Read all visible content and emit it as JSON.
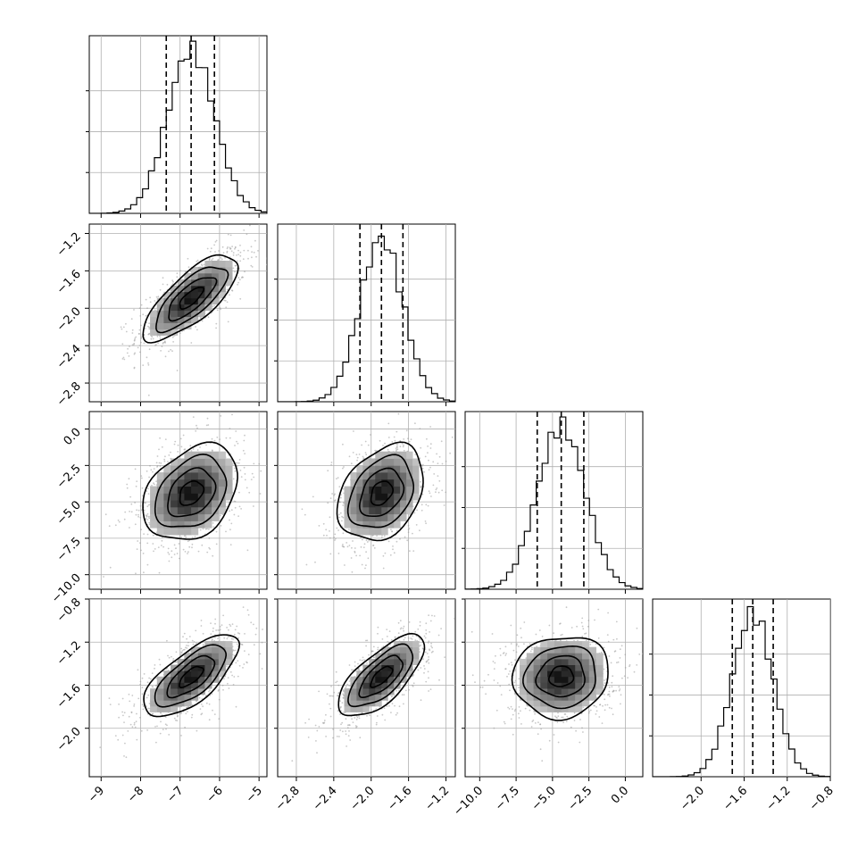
{
  "chart_data": {
    "type": "corner",
    "title": "",
    "quantiles": [
      0.16,
      0.5,
      0.84
    ],
    "grid": true,
    "contour_levels": [
      0.118,
      0.393,
      0.675,
      0.864
    ],
    "parameters": [
      {
        "index": 0,
        "label": "",
        "mean": -6.72,
        "sd": 0.6,
        "range": [
          -9.3,
          -4.8
        ],
        "ticks": [
          -9,
          -8,
          -7,
          -6,
          -5
        ],
        "tick_labels": [
          "−9",
          "−8",
          "−7",
          "−6",
          "−5"
        ],
        "quantile_values": [
          -7.35,
          -6.72,
          -6.13
        ]
      },
      {
        "index": 1,
        "label": "",
        "mean": -1.89,
        "sd": 0.23,
        "range": [
          -3.0,
          -1.1
        ],
        "ticks": [
          -2.8,
          -2.4,
          -2.0,
          -1.6,
          -1.2
        ],
        "tick_labels": [
          "−2.8",
          "−2.4",
          "−2.0",
          "−1.6",
          "−1.2"
        ],
        "quantile_values": [
          -2.12,
          -1.89,
          -1.66
        ]
      },
      {
        "index": 2,
        "label": "",
        "mean": -4.4,
        "sd": 1.65,
        "range": [
          -11.0,
          1.2
        ],
        "ticks": [
          -10.0,
          -7.5,
          -5.0,
          -2.5,
          0.0
        ],
        "tick_labels": [
          "−10.0",
          "−7.5",
          "−5.0",
          "−2.5",
          "0.0"
        ],
        "quantile_values": [
          -6.05,
          -4.4,
          -2.85
        ]
      },
      {
        "index": 3,
        "label": "",
        "mean": -1.52,
        "sd": 0.19,
        "range": [
          -2.45,
          -0.8
        ],
        "ticks": [
          -2.0,
          -1.6,
          -1.2,
          -0.8
        ],
        "tick_labels": [
          "−2.0",
          "−1.6",
          "−1.2",
          "−0.8"
        ],
        "quantile_values": [
          -1.71,
          -1.52,
          -1.33
        ]
      }
    ],
    "correlations": {
      "1-0": 0.75,
      "2-0": 0.32,
      "2-1": 0.32,
      "3-0": 0.7,
      "3-1": 0.7,
      "3-2": 0.08
    },
    "y_tick_columns": {
      "1": {
        "ticks": [
          -2.8,
          -2.4,
          -2.0,
          -1.6,
          -1.2
        ],
        "tick_labels": [
          "−2.8",
          "−2.4",
          "−2.0",
          "−1.6",
          "−1.2"
        ]
      },
      "2": {
        "ticks": [
          -10.0,
          -7.5,
          -5.0,
          -2.5,
          0.0
        ],
        "tick_labels": [
          "−10.0",
          "−7.5",
          "−5.0",
          "−2.5",
          "0.0"
        ]
      },
      "3": {
        "ticks": [
          -2.0,
          -1.6,
          -1.2,
          -0.8
        ],
        "tick_labels": [
          "−2.0",
          "−1.6",
          "−1.2",
          "−0.8"
        ]
      }
    }
  }
}
